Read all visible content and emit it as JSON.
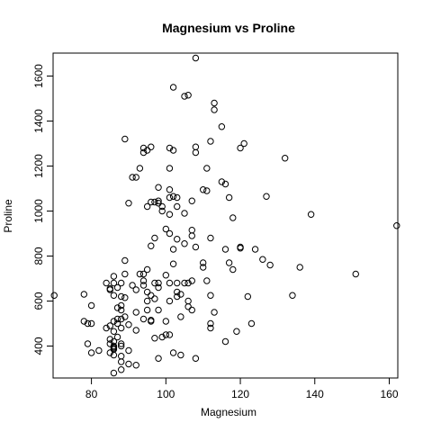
{
  "chart_data": {
    "type": "scatter",
    "title": "Magnesium vs Proline",
    "xlabel": "Magnesium",
    "ylabel": "Proline",
    "xlim": [
      69.7,
      162.3
    ],
    "ylim": [
      258,
      1702
    ],
    "xticks": [
      80,
      100,
      120,
      140,
      160
    ],
    "yticks": [
      400,
      600,
      800,
      1000,
      1200,
      1400,
      1600
    ],
    "grid": false,
    "legend": "none",
    "marker": "open-circle",
    "marker_color": "#000000",
    "points": [
      [
        70,
        625
      ],
      [
        78,
        510
      ],
      [
        78,
        630
      ],
      [
        79,
        500
      ],
      [
        79,
        410
      ],
      [
        80,
        370
      ],
      [
        80,
        580
      ],
      [
        80,
        500
      ],
      [
        82,
        380
      ],
      [
        84,
        680
      ],
      [
        84,
        480
      ],
      [
        85,
        490
      ],
      [
        85,
        430
      ],
      [
        85,
        370
      ],
      [
        85,
        410
      ],
      [
        85,
        650
      ],
      [
        85,
        655
      ],
      [
        86,
        680
      ],
      [
        86,
        400
      ],
      [
        86,
        395
      ],
      [
        86,
        390
      ],
      [
        86,
        385
      ],
      [
        86,
        360
      ],
      [
        86,
        280
      ],
      [
        86,
        710
      ],
      [
        86,
        465
      ],
      [
        86,
        510
      ],
      [
        86,
        625
      ],
      [
        86,
        420
      ],
      [
        87,
        660
      ],
      [
        87,
        570
      ],
      [
        87,
        500
      ],
      [
        87,
        520
      ],
      [
        87,
        440
      ],
      [
        88,
        620
      ],
      [
        88,
        580
      ],
      [
        88,
        520
      ],
      [
        88,
        560
      ],
      [
        88,
        480
      ],
      [
        88,
        410
      ],
      [
        88,
        400
      ],
      [
        88,
        355
      ],
      [
        88,
        330
      ],
      [
        88,
        680
      ],
      [
        88,
        295
      ],
      [
        89,
        1320
      ],
      [
        89,
        780
      ],
      [
        89,
        720
      ],
      [
        89,
        615
      ],
      [
        89,
        530
      ],
      [
        90,
        1035
      ],
      [
        90,
        495
      ],
      [
        90,
        380
      ],
      [
        90,
        320
      ],
      [
        91,
        1150
      ],
      [
        91,
        670
      ],
      [
        92,
        1150
      ],
      [
        92,
        650
      ],
      [
        92,
        550
      ],
      [
        92,
        470
      ],
      [
        92,
        315
      ],
      [
        93,
        1190
      ],
      [
        93,
        720
      ],
      [
        94,
        1260
      ],
      [
        94,
        1280
      ],
      [
        94,
        690
      ],
      [
        94,
        670
      ],
      [
        94,
        520
      ],
      [
        94,
        720
      ],
      [
        95,
        1270
      ],
      [
        95,
        1020
      ],
      [
        95,
        740
      ],
      [
        95,
        640
      ],
      [
        95,
        600
      ],
      [
        95,
        560
      ],
      [
        96,
        1285
      ],
      [
        96,
        1040
      ],
      [
        96,
        845
      ],
      [
        96,
        625
      ],
      [
        96,
        515
      ],
      [
        96,
        510
      ],
      [
        97,
        1040
      ],
      [
        97,
        880
      ],
      [
        97,
        680
      ],
      [
        97,
        610
      ],
      [
        97,
        435
      ],
      [
        98,
        1105
      ],
      [
        98,
        1035
      ],
      [
        98,
        1045
      ],
      [
        98,
        680
      ],
      [
        98,
        660
      ],
      [
        98,
        560
      ],
      [
        98,
        345
      ],
      [
        99,
        1020
      ],
      [
        99,
        440
      ],
      [
        99,
        1000
      ],
      [
        100,
        920
      ],
      [
        100,
        715
      ],
      [
        100,
        510
      ],
      [
        100,
        450
      ],
      [
        101,
        1280
      ],
      [
        101,
        1190
      ],
      [
        101,
        1095
      ],
      [
        101,
        1060
      ],
      [
        101,
        985
      ],
      [
        101,
        900
      ],
      [
        101,
        680
      ],
      [
        101,
        600
      ],
      [
        101,
        450
      ],
      [
        102,
        1550
      ],
      [
        102,
        1270
      ],
      [
        102,
        1065
      ],
      [
        102,
        830
      ],
      [
        102,
        765
      ],
      [
        102,
        370
      ],
      [
        103,
        1060
      ],
      [
        103,
        1020
      ],
      [
        103,
        875
      ],
      [
        103,
        680
      ],
      [
        103,
        640
      ],
      [
        103,
        620
      ],
      [
        104,
        630
      ],
      [
        104,
        530
      ],
      [
        104,
        360
      ],
      [
        105,
        1510
      ],
      [
        105,
        990
      ],
      [
        105,
        855
      ],
      [
        105,
        680
      ],
      [
        106,
        1515
      ],
      [
        106,
        680
      ],
      [
        106,
        600
      ],
      [
        106,
        575
      ],
      [
        107,
        1045
      ],
      [
        107,
        915
      ],
      [
        107,
        890
      ],
      [
        107,
        690
      ],
      [
        107,
        560
      ],
      [
        108,
        1680
      ],
      [
        108,
        1285
      ],
      [
        108,
        1260
      ],
      [
        108,
        840
      ],
      [
        108,
        345
      ],
      [
        110,
        1095
      ],
      [
        110,
        770
      ],
      [
        110,
        750
      ],
      [
        111,
        1190
      ],
      [
        111,
        1090
      ],
      [
        111,
        690
      ],
      [
        112,
        1310
      ],
      [
        112,
        880
      ],
      [
        112,
        625
      ],
      [
        112,
        500
      ],
      [
        112,
        480
      ],
      [
        113,
        1480
      ],
      [
        113,
        1450
      ],
      [
        113,
        550
      ],
      [
        115,
        1375
      ],
      [
        115,
        1130
      ],
      [
        116,
        1120
      ],
      [
        116,
        830
      ],
      [
        116,
        420
      ],
      [
        117,
        1060
      ],
      [
        117,
        770
      ],
      [
        118,
        970
      ],
      [
        118,
        740
      ],
      [
        119,
        465
      ],
      [
        120,
        1280
      ],
      [
        120,
        840
      ],
      [
        120,
        835
      ],
      [
        121,
        1300
      ],
      [
        122,
        620
      ],
      [
        123,
        500
      ],
      [
        124,
        830
      ],
      [
        126,
        785
      ],
      [
        127,
        1065
      ],
      [
        128,
        760
      ],
      [
        132,
        1235
      ],
      [
        134,
        625
      ],
      [
        136,
        750
      ],
      [
        139,
        985
      ],
      [
        151,
        720
      ],
      [
        162,
        935
      ]
    ]
  }
}
